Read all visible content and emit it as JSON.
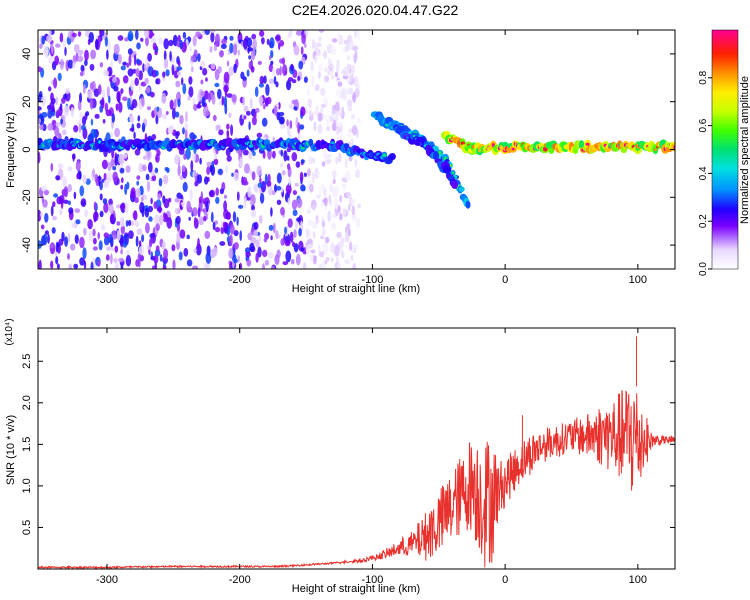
{
  "figure_title": "C2E4.2026.020.04.47.G22",
  "chart_data": [
    {
      "type": "heatmap",
      "xlabel": "Height of straight line (km)",
      "ylabel": "Frequency (Hz)",
      "xlim": [
        -352,
        128
      ],
      "ylim": [
        -50,
        50
      ],
      "x_ticks": [
        -300,
        -200,
        -100,
        0,
        100
      ],
      "y_ticks": [
        -40,
        -20,
        0,
        20,
        40
      ],
      "colorbar": {
        "label": "Normalized spectral amplitude",
        "range": [
          0,
          1
        ],
        "ticks": [
          0.0,
          0.2,
          0.4,
          0.6,
          0.8
        ],
        "tick_labels": [
          "0.0",
          "0.2",
          "0.4",
          "0.6",
          "0.8"
        ]
      },
      "features": [
        {
          "kind": "noise_floor",
          "x": [
            -352,
            -150
          ],
          "y": [
            -50,
            50
          ],
          "level": 0.15
        },
        {
          "kind": "ridge",
          "points": [
            [
              -352,
              2
            ],
            [
              -250,
              2
            ],
            [
              -160,
              2
            ],
            [
              -130,
              2
            ],
            [
              -100,
              -3
            ],
            [
              -85,
              -4
            ]
          ],
          "level": 0.35
        },
        {
          "kind": "ridge",
          "points": [
            [
              -98,
              14
            ],
            [
              -80,
              9
            ],
            [
              -60,
              3
            ],
            [
              -45,
              -5
            ],
            [
              -35,
              -15
            ],
            [
              -28,
              -23
            ]
          ],
          "level": 0.45
        },
        {
          "kind": "ridge",
          "points": [
            [
              -85,
              10
            ],
            [
              -70,
              5
            ],
            [
              -55,
              -1
            ],
            [
              -45,
              -8
            ],
            [
              -38,
              -14
            ]
          ],
          "level": 0.35
        },
        {
          "kind": "ridge",
          "points": [
            [
              -45,
              6
            ],
            [
              -32,
              2
            ],
            [
              -25,
              0
            ],
            [
              0,
              1
            ],
            [
              50,
              1
            ],
            [
              100,
              1
            ],
            [
              128,
              1
            ]
          ],
          "level": 0.9
        }
      ]
    },
    {
      "type": "line",
      "xlabel": "Height of straight line (km)",
      "ylabel": "SNR (10 * v/v)",
      "y_multiplier": "(x10⁴)",
      "xlim": [
        -352,
        128
      ],
      "ylim": [
        0,
        2.9
      ],
      "x_ticks": [
        -300,
        -200,
        -100,
        0,
        100
      ],
      "y_ticks": [
        0.5,
        1.0,
        1.5,
        2.0,
        2.5
      ],
      "y_tick_labels": [
        "0.5",
        "1.0",
        "1.5",
        "2.0",
        "2.5"
      ],
      "series": [
        {
          "color": "#e8312c",
          "x": [
            -352,
            -300,
            -250,
            -200,
            -170,
            -150,
            -130,
            -110,
            -100,
            -90,
            -80,
            -70,
            -60,
            -50,
            -40,
            -30,
            -25,
            -20,
            -15,
            -10,
            -5,
            0,
            10,
            20,
            30,
            40,
            50,
            60,
            70,
            80,
            90,
            95,
            100,
            110,
            120,
            128
          ],
          "y": [
            0.02,
            0.02,
            0.03,
            0.03,
            0.03,
            0.05,
            0.07,
            0.1,
            0.13,
            0.18,
            0.25,
            0.3,
            0.4,
            0.55,
            0.75,
            0.95,
            1.05,
            0.9,
            0.8,
            0.85,
            0.95,
            1.05,
            1.25,
            1.4,
            1.5,
            1.55,
            1.6,
            1.6,
            1.62,
            1.6,
            1.6,
            1.6,
            1.55,
            1.55,
            1.55,
            1.55
          ],
          "spread": [
            0,
            0,
            0,
            0,
            0,
            0,
            0,
            0.02,
            0.03,
            0.05,
            0.1,
            0.15,
            0.3,
            0.4,
            0.45,
            0.5,
            0.6,
            0.7,
            0.8,
            0.8,
            0.35,
            0.3,
            0.25,
            0.25,
            0.2,
            0.2,
            0.2,
            0.25,
            0.35,
            0.45,
            0.6,
            0.8,
            0.7,
            0.1,
            0.05,
            0.05
          ]
        }
      ],
      "annotations": [
        {
          "x": 99,
          "y": 2.8,
          "text": ""
        },
        {
          "x": 13,
          "y": 1.85,
          "text": ""
        }
      ]
    }
  ]
}
